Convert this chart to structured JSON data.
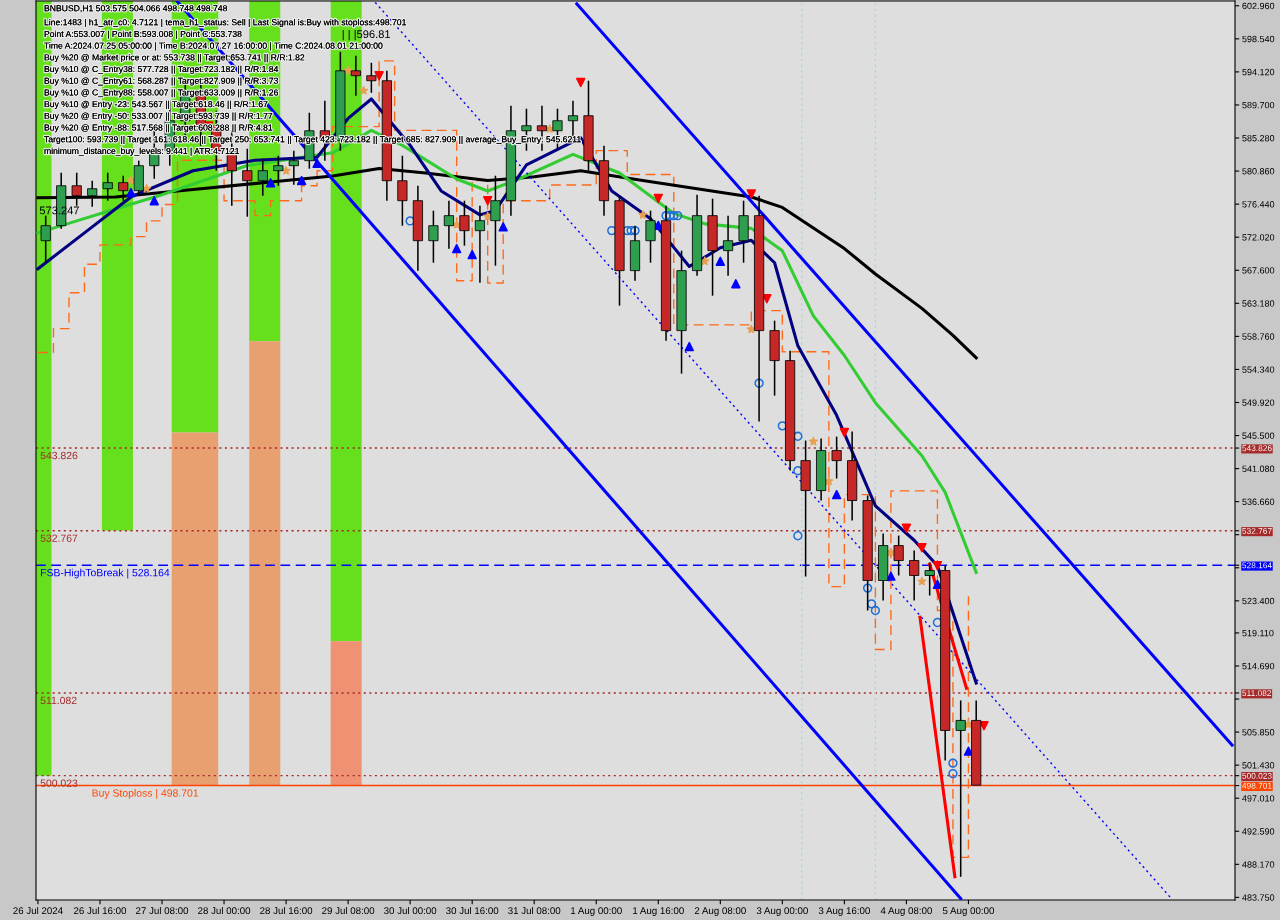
{
  "chart_data": {
    "type": "candlestick",
    "title": "BNBUSD,H1 503.575 504.066 498.748 498.748",
    "x": [
      "2024-07-26T02:00",
      "2024-07-26T06:00",
      "2024-07-26T10:00",
      "2024-07-26T14:00",
      "2024-07-26T18:00",
      "2024-07-26T22:00",
      "2024-07-27T02:00",
      "2024-07-27T06:00",
      "2024-07-27T10:00",
      "2024-07-27T14:00",
      "2024-07-27T18:00",
      "2024-07-27T22:00",
      "2024-07-28T02:00",
      "2024-07-28T06:00",
      "2024-07-28T10:00",
      "2024-07-28T14:00",
      "2024-07-28T18:00",
      "2024-07-28T22:00",
      "2024-07-29T02:00",
      "2024-07-29T06:00",
      "2024-07-29T10:00",
      "2024-07-29T14:00",
      "2024-07-29T18:00",
      "2024-07-29T22:00",
      "2024-07-30T02:00",
      "2024-07-30T06:00",
      "2024-07-30T10:00",
      "2024-07-30T14:00",
      "2024-07-30T18:00",
      "2024-07-30T22:00",
      "2024-07-31T02:00",
      "2024-07-31T06:00",
      "2024-07-31T10:00",
      "2024-07-31T14:00",
      "2024-07-31T18:00",
      "2024-07-31T22:00",
      "2024-08-01T02:00",
      "2024-08-01T06:00",
      "2024-08-01T10:00",
      "2024-08-01T14:00",
      "2024-08-01T18:00",
      "2024-08-01T22:00",
      "2024-08-02T02:00",
      "2024-08-02T06:00",
      "2024-08-02T10:00",
      "2024-08-02T14:00",
      "2024-08-02T18:00",
      "2024-08-02T22:00",
      "2024-08-03T02:00",
      "2024-08-03T06:00",
      "2024-08-03T10:00",
      "2024-08-03T14:00",
      "2024-08-03T18:00",
      "2024-08-03T22:00",
      "2024-08-04T02:00",
      "2024-08-04T06:00",
      "2024-08-04T10:00",
      "2024-08-04T14:00",
      "2024-08-04T18:00",
      "2024-08-04T22:00",
      "2024-08-05T02:00"
    ],
    "ohlc": [
      [
        571.55,
        574.9,
        568.61,
        573.56
      ],
      [
        573.56,
        580.64,
        573.16,
        578.9
      ],
      [
        578.9,
        580.64,
        576.23,
        577.57
      ],
      [
        577.57,
        579.57,
        576.1,
        578.5
      ],
      [
        578.5,
        580.64,
        576.9,
        579.31
      ],
      [
        579.31,
        580.24,
        576.9,
        578.24
      ],
      [
        578.24,
        582.25,
        577.57,
        581.58
      ],
      [
        581.58,
        586.25,
        579.84,
        583.58
      ],
      [
        583.58,
        590.26,
        581.58,
        587.59
      ],
      [
        587.59,
        593.2,
        584.92,
        590.93
      ],
      [
        590.93,
        593.2,
        584.25,
        586.92
      ],
      [
        586.92,
        588.93,
        580.91,
        583.58
      ],
      [
        583.58,
        586.25,
        576.23,
        580.91
      ],
      [
        580.91,
        583.85,
        574.76,
        579.57
      ],
      [
        579.57,
        582.51,
        577.57,
        580.91
      ],
      [
        580.91,
        582.91,
        578.9,
        581.58
      ],
      [
        581.58,
        583.58,
        579.04,
        582.25
      ],
      [
        582.25,
        588.66,
        581.18,
        586.25
      ],
      [
        586.25,
        590.26,
        582.25,
        584.92
      ],
      [
        584.92,
        596.81,
        583.58,
        594.27
      ],
      [
        594.27,
        596.28,
        590.93,
        593.61
      ],
      [
        593.61,
        595.34,
        591.33,
        592.94
      ],
      [
        592.94,
        594.27,
        576.9,
        579.57
      ],
      [
        579.57,
        582.91,
        573.56,
        576.9
      ],
      [
        576.9,
        578.9,
        567.55,
        571.55
      ],
      [
        571.55,
        575.56,
        568.61,
        573.56
      ],
      [
        573.56,
        576.9,
        570.49,
        574.9
      ],
      [
        574.9,
        576.9,
        570.89,
        572.89
      ],
      [
        572.89,
        576.23,
        565.94,
        574.23
      ],
      [
        574.23,
        580.24,
        568.21,
        576.9
      ],
      [
        576.9,
        589.6,
        574.9,
        586.25
      ],
      [
        586.25,
        589.2,
        583.58,
        586.92
      ],
      [
        586.92,
        589.6,
        583.58,
        586.25
      ],
      [
        586.25,
        589.2,
        583.85,
        587.59
      ],
      [
        587.59,
        590.26,
        584.92,
        588.26
      ],
      [
        588.26,
        592.94,
        580.91,
        582.25
      ],
      [
        582.25,
        584.25,
        574.9,
        576.9
      ],
      [
        576.9,
        577.57,
        562.87,
        567.55
      ],
      [
        567.55,
        573.56,
        566.21,
        571.55
      ],
      [
        571.55,
        575.56,
        568.61,
        574.23
      ],
      [
        574.23,
        576.23,
        558.19,
        559.53
      ],
      [
        559.53,
        570.22,
        553.78,
        567.55
      ],
      [
        567.55,
        577.7,
        566.88,
        574.9
      ],
      [
        574.9,
        577.17,
        564.2,
        570.22
      ],
      [
        570.22,
        574.9,
        566.88,
        571.55
      ],
      [
        571.55,
        576.9,
        568.61,
        574.9
      ],
      [
        574.9,
        577.57,
        547.37,
        559.53
      ],
      [
        559.53,
        560.86,
        550.84,
        555.52
      ],
      [
        555.52,
        556.85,
        540.82,
        542.15
      ],
      [
        542.15,
        544.83,
        526.65,
        538.14
      ],
      [
        538.14,
        545.09,
        536.81,
        543.49
      ],
      [
        543.49,
        545.36,
        539.75,
        542.15
      ],
      [
        542.15,
        546.03,
        534.14,
        536.81
      ],
      [
        536.81,
        537.48,
        522.11,
        526.12
      ],
      [
        526.12,
        532.4,
        523.44,
        530.79
      ],
      [
        530.79,
        532.13,
        526.79,
        528.79
      ],
      [
        528.79,
        530.13,
        523.44,
        526.79
      ],
      [
        526.79,
        528.52,
        524.11,
        527.45
      ],
      [
        527.45,
        528.12,
        502.06,
        506.07
      ],
      [
        506.07,
        510.08,
        486.5,
        507.41
      ],
      [
        507.41,
        510.08,
        498.748,
        498.748
      ]
    ],
    "colors": [
      "#2e9e4f",
      "#2e9e4f",
      "#c62828",
      "#2e9e4f",
      "#2e9e4f",
      "#c62828",
      "#2e9e4f",
      "#2e9e4f",
      "#2e9e4f",
      "#2e9e4f",
      "#c62828",
      "#c62828",
      "#c62828",
      "#c62828",
      "#2e9e4f",
      "#2e9e4f",
      "#2e9e4f",
      "#2e9e4f",
      "#c62828",
      "#2e9e4f",
      "#c62828",
      "#c62828",
      "#c62828",
      "#c62828",
      "#c62828",
      "#2e9e4f",
      "#2e9e4f",
      "#c62828",
      "#2e9e4f",
      "#2e9e4f",
      "#2e9e4f",
      "#2e9e4f",
      "#c62828",
      "#2e9e4f",
      "#2e9e4f",
      "#c62828",
      "#c62828",
      "#c62828",
      "#2e9e4f",
      "#2e9e4f",
      "#c62828",
      "#2e9e4f",
      "#2e9e4f",
      "#c62828",
      "#2e9e4f",
      "#2e9e4f",
      "#c62828",
      "#c62828",
      "#c62828",
      "#c62828",
      "#2e9e4f",
      "#c62828",
      "#c62828",
      "#c62828",
      "#2e9e4f",
      "#c62828",
      "#c62828",
      "#2e9e4f",
      "#c62828",
      "#2e9e4f",
      "#c62828"
    ],
    "series": [
      {
        "type": "histogram",
        "color": "#66e01c",
        "bins": [
          "2024-07-25T23:30",
          "2024-07-26T03:30",
          "2024-07-26T16:30",
          "2024-07-27T00:30",
          "2024-07-27T10:30",
          "2024-07-27T22:30",
          "2024-07-28T06:30",
          "2024-07-28T14:30",
          "2024-07-29T03:30",
          "2024-07-29T11:30"
        ],
        "base": [
          500.0,
          null,
          532.8,
          null,
          545.9,
          null,
          558.1,
          null,
          518.0
        ],
        "values": [
          103.6,
          null,
          70.8,
          null,
          57.7,
          null,
          45.5,
          null,
          85.6
        ]
      },
      {
        "type": "histogram",
        "color": "#e8a070",
        "bins": [
          "2024-07-27T10:30",
          "2024-07-27T22:30",
          "2024-07-28T06:30",
          "2024-07-28T14:30"
        ],
        "base": [
          498.7,
          null,
          498.7
        ],
        "values": [
          47.2,
          null,
          59.4
        ]
      },
      {
        "type": "histogram",
        "color": "#ef9274",
        "bins": [
          "2024-07-29T03:30",
          "2024-07-29T11:30"
        ],
        "base": [
          498.7
        ],
        "values": [
          19.3
        ]
      },
      {
        "type": "step",
        "color": "#ff6a1a",
        "line_style": "dashed",
        "x": [
          "2024-07-26T00:00",
          "2024-07-26T04:00",
          "2024-07-26T08:00",
          "2024-07-26T12:00",
          "2024-07-26T16:00",
          "2024-07-27T00:00",
          "2024-07-27T04:00",
          "2024-07-27T08:00",
          "2024-07-27T12:00",
          "2024-07-28T00:00",
          "2024-07-28T08:00",
          "2024-07-28T12:00",
          "2024-07-28T20:00",
          "2024-07-29T00:00",
          "2024-07-29T04:00",
          "2024-07-29T16:00",
          "2024-07-29T20:00",
          "2024-07-30T12:00",
          "2024-07-30T16:00",
          "2024-07-30T20:00",
          "2024-07-31T00:00",
          "2024-07-31T12:00",
          "2024-08-01T00:00",
          "2024-08-01T08:00",
          "2024-08-01T20:00",
          "2024-08-02T16:00",
          "2024-08-03T00:00",
          "2024-08-03T12:00",
          "2024-08-03T16:00",
          "2024-08-04T00:00",
          "2024-08-04T04:00",
          "2024-08-04T16:00",
          "2024-08-04T20:00",
          "2024-08-05T00:00"
        ],
        "values": [
          556.6,
          559.8,
          564.6,
          568.4,
          571.0,
          572.1,
          574.2,
          576.4,
          582.3,
          576.9,
          574.9,
          576.9,
          578.9,
          580.9,
          586.8,
          595.6,
          586.3,
          566.2,
          579.6,
          565.9,
          576.9,
          579.0,
          583.6,
          580.4,
          560.3,
          562.2,
          556.7,
          525.3,
          537.6,
          516.9,
          538.1,
          522.1,
          489.1,
          524.0
        ]
      },
      {
        "type": "line",
        "color": "#000000",
        "line_style": "solid",
        "x": [
          "2024-07-26T00:00",
          "2024-07-26T20:00",
          "2024-07-27T16:00",
          "2024-07-28T12:00",
          "2024-07-29T04:00",
          "2024-07-29T16:00",
          "2024-07-30T04:00",
          "2024-07-30T20:00",
          "2024-07-31T08:00",
          "2024-07-31T20:00",
          "2024-08-01T12:00",
          "2024-08-02T02:00",
          "2024-08-02T16:00",
          "2024-08-03T00:00",
          "2024-08-03T16:00",
          "2024-08-04T00:00",
          "2024-08-04T12:00",
          "2024-08-04T20:00",
          "2024-08-05T02:00"
        ],
        "values": [
          577.3,
          577.4,
          578.4,
          579.4,
          580.2,
          581.2,
          580.6,
          579.6,
          580.1,
          580.9,
          579.6,
          578.5,
          577.4,
          576.0,
          570.5,
          567.1,
          562.5,
          558.9,
          555.9
        ]
      },
      {
        "type": "line",
        "color": "#33cc33",
        "line_style": "solid",
        "x": [
          "2024-07-26T00:00",
          "2024-07-26T10:00",
          "2024-07-26T20:00",
          "2024-07-27T08:00",
          "2024-07-28T06:00",
          "2024-07-29T04:00",
          "2024-07-29T14:00",
          "2024-07-29T22:00",
          "2024-07-30T12:00",
          "2024-07-30T20:00",
          "2024-07-31T04:00",
          "2024-07-31T18:00",
          "2024-08-01T06:00",
          "2024-08-01T20:00",
          "2024-08-02T04:00",
          "2024-08-02T16:00",
          "2024-08-03T00:00",
          "2024-08-03T08:00",
          "2024-08-03T16:00",
          "2024-08-04T00:00",
          "2024-08-04T12:00",
          "2024-08-04T18:00",
          "2024-08-05T02:00"
        ],
        "values": [
          572.6,
          574.2,
          575.8,
          577.7,
          581.6,
          583.3,
          586.3,
          584.3,
          579.8,
          578.2,
          579.8,
          583.1,
          580.6,
          575.2,
          573.8,
          573.2,
          570.2,
          561.5,
          556.2,
          549.9,
          542.8,
          537.9,
          527.2
        ]
      },
      {
        "type": "line",
        "color": "#000080",
        "line_style": "solid",
        "x": [
          "2024-07-26T00:00",
          "2024-07-26T12:00",
          "2024-07-27T00:00",
          "2024-07-27T16:00",
          "2024-07-28T08:00",
          "2024-07-29T00:00",
          "2024-07-29T08:00",
          "2024-07-29T14:00",
          "2024-07-30T00:00",
          "2024-07-30T08:00",
          "2024-07-30T18:00",
          "2024-07-30T22:00",
          "2024-07-31T06:00",
          "2024-07-31T20:00",
          "2024-08-01T04:00",
          "2024-08-01T14:00",
          "2024-08-02T00:00",
          "2024-08-02T08:00",
          "2024-08-02T16:00",
          "2024-08-02T22:00",
          "2024-08-03T04:00",
          "2024-08-03T14:00",
          "2024-08-04T00:00",
          "2024-08-04T10:00",
          "2024-08-04T16:00",
          "2024-08-05T02:00"
        ],
        "values": [
          567.8,
          572.6,
          577.4,
          580.9,
          582.3,
          582.7,
          587.9,
          590.5,
          584.3,
          578.2,
          575.0,
          575.6,
          581.7,
          585.3,
          578.2,
          574.5,
          568.1,
          570.6,
          571.6,
          568.6,
          557.5,
          548.2,
          536.1,
          531.5,
          528.1,
          512.4
        ]
      },
      {
        "type": "line",
        "color": "#0000ff",
        "line_style": "solid",
        "x": [
          "2024-07-31T19:00",
          "2024-08-07T20:00"
        ],
        "values": [
          603.2,
          504.1
        ]
      },
      {
        "type": "line",
        "color": "#0000ff",
        "line_style": "solid",
        "x": [
          "2024-07-27T12:00",
          "2024-08-04T22:00"
        ],
        "values": [
          603.5,
          483.6
        ]
      },
      {
        "type": "line",
        "color": "#0000ff",
        "line_style": "dotted",
        "x": [
          "2024-07-29T15:00",
          "2024-08-07T04:00"
        ],
        "values": [
          603.4,
          483.8
        ]
      },
      {
        "type": "line",
        "color": "#ff0000",
        "line_style": "solid",
        "x": [
          "2024-08-04T11:30",
          "2024-08-04T20:30"
        ],
        "values": [
          521.2,
          486.5
        ]
      },
      {
        "type": "line",
        "color": "#ff0000",
        "line_style": "solid",
        "x": [
          "2024-08-04T14:00",
          "2024-08-04T23:30"
        ],
        "values": [
          528.3,
          511.7
        ]
      },
      {
        "type": "scatter",
        "color": "#ff0000",
        "marker": "triangle_down",
        "x": [
          "2024-07-27T20:00",
          "2024-07-29T16:00",
          "2024-07-30T20:00",
          "2024-07-31T20:00",
          "2024-08-01T16:00",
          "2024-08-02T16:00",
          "2024-08-02T20:00",
          "2024-08-03T16:00",
          "2024-08-04T08:00",
          "2024-08-04T12:00",
          "2024-08-04T16:00",
          "2024-08-05T04:00"
        ],
        "values": [
          586.9,
          593.6,
          576.9,
          592.7,
          577.2,
          577.8,
          563.8,
          545.9,
          533.1,
          530.5,
          528.1,
          506.7
        ]
      },
      {
        "type": "scatter",
        "color": "#0000ff",
        "marker": "triangle",
        "x": [
          "2024-07-27T00:00",
          "2024-07-27T06:00",
          "2024-07-28T12:00",
          "2024-07-28T20:00",
          "2024-07-29T00:00",
          "2024-07-30T12:00",
          "2024-07-30T16:00",
          "2024-07-31T00:00",
          "2024-08-01T16:00",
          "2024-08-02T00:00",
          "2024-08-02T08:00",
          "2024-08-02T12:00",
          "2024-08-03T14:00",
          "2024-08-04T04:00",
          "2024-08-04T16:00",
          "2024-08-05T00:00"
        ],
        "values": [
          578.0,
          576.9,
          579.3,
          579.6,
          581.9,
          570.5,
          569.7,
          573.4,
          573.6,
          557.4,
          568.8,
          565.8,
          537.6,
          526.7,
          525.6,
          503.3
        ]
      },
      {
        "type": "scatter",
        "color": "#1e6fd9",
        "marker": "circle",
        "x": [
          "2024-07-30T00:00",
          "2024-08-01T04:00",
          "2024-08-01T08:00",
          "2024-08-01T09:00",
          "2024-08-01T10:00",
          "2024-08-01T18:00",
          "2024-08-01T19:00",
          "2024-08-01T20:00",
          "2024-08-01T21:00",
          "2024-08-02T18:00",
          "2024-08-03T00:00",
          "2024-08-03T04:00",
          "2024-08-03T04:00",
          "2024-08-03T04:00",
          "2024-08-03T22:00",
          "2024-08-03T23:00",
          "2024-08-04T00:00",
          "2024-08-04T16:00",
          "2024-08-04T20:00",
          "2024-08-04T20:00"
        ],
        "values": [
          574.2,
          572.9,
          572.9,
          572.9,
          572.9,
          574.9,
          574.9,
          574.9,
          574.9,
          552.5,
          546.8,
          545.4,
          540.8,
          532.1,
          525.1,
          523.0,
          522.1,
          520.5,
          501.7,
          500.3
        ]
      },
      {
        "type": "scatter",
        "color": "#e8a050",
        "marker": "star",
        "x": [
          "2024-07-27T00:00",
          "2024-07-27T04:00",
          "2024-07-28T16:00",
          "2024-07-29T08:00",
          "2024-07-29T12:00",
          "2024-07-30T12:00",
          "2024-07-30T20:00",
          "2024-07-31T12:00",
          "2024-08-01T12:00",
          "2024-08-02T04:00",
          "2024-08-02T16:00",
          "2024-08-03T08:00",
          "2024-08-03T12:00",
          "2024-08-04T04:00",
          "2024-08-04T12:00",
          "2024-08-05T00:00"
        ],
        "values": [
          579.6,
          578.5,
          580.9,
          594.3,
          591.6,
          573.7,
          574.8,
          586.5,
          575.0,
          568.8,
          559.7,
          544.7,
          539.4,
          529.9,
          526.0,
          506.9
        ]
      }
    ],
    "ref_lines": [
      {
        "axis": "y",
        "value": 543.826,
        "label": "543.826",
        "color": "#a52a2a",
        "line_style": "dotted"
      },
      {
        "axis": "y",
        "value": 532.767,
        "label": "532.767",
        "color": "#a52a2a",
        "line_style": "dotted"
      },
      {
        "axis": "y",
        "value": 528.164,
        "label": "FSB-HighToBreak | 528.164",
        "color": "#0000ff",
        "line_style": "dashed"
      },
      {
        "axis": "y",
        "value": 511.082,
        "label": "511.082",
        "color": "#a52a2a",
        "line_style": "dotted"
      },
      {
        "axis": "y",
        "value": 500.023,
        "label": "500.023",
        "color": "#a52a2a",
        "line_style": "dotted"
      },
      {
        "axis": "y",
        "value": 498.701,
        "label": "Buy Stoploss | 498.701",
        "color": "#ff4500",
        "line_style": "solid"
      },
      {
        "axis": "x",
        "value": "2024-08-03T05:00",
        "color": "#9fd8e6",
        "line_style": "dotted"
      },
      {
        "axis": "x",
        "value": "2024-08-04T00:00",
        "color": "#9fd8e6",
        "line_style": "dotted"
      }
    ],
    "annotations": [
      "Line:1483 | h1_atr_c0: 4.7121 | tema_h1_status: Sell | Last Signal is:Buy with stoploss:498.701",
      "Point A:553.007 | Point B:593.008 | Point C:553.738",
      "Time A:2024.07.25 05:00:00 | Time B:2024.07.27 16:00:00 | Time C:2024.08.01 21:00:00",
      "Buy %20 @ Market price or at: 553.738 || Target:653.741 || R/R:1.82",
      "Buy %10 @ C_Entry38: 577.728 || Target:723.182 || R/R:1.84",
      "Buy %10 @ C_Entry61: 568.287 || Target:827.909 || R/R:3.73",
      "Buy %10 @ C_Entry88: 558.007 || Target:633.009 || R/R:1.26",
      "Buy %10 @ Entry -23: 543.567 || Target:618.46 || R/R:1.67",
      "Buy %20 @ Entry -50: 533.007 || Target:593.739 || R/R:1.77",
      "Buy %20 @ Entry -88: 517.568 || Target:608.288 || R/R:4.81",
      "Target100: 593.739 || Target 161: 618.46 || Target 250: 653.741 || Target 423: 723.182 || Target 685: 827.909 || average_Buy_Entry: 545.6211",
      "minimum_distance_buy_levels: 9.441 | ATR:4.7121",
      {
        "text": "| | |596.81",
        "x": "2024-07-29T06:00",
        "y": 596.81
      },
      {
        "text": "573.247",
        "x": "2024-07-26T00:00",
        "y": 573.247
      }
    ],
    "xlim": [
      "2024-07-25T23:30",
      "2024-08-07T20:45"
    ],
    "ylim": [
      483.4,
      603.6
    ],
    "xticks": [
      {
        "value": "2024-07-26T00:00",
        "label": "26 Jul 2024"
      },
      {
        "value": "2024-07-26T16:00",
        "label": "26 Jul 16:00"
      },
      {
        "value": "2024-07-27T08:00",
        "label": "27 Jul 08:00"
      },
      {
        "value": "2024-07-28T00:00",
        "label": "28 Jul 00:00"
      },
      {
        "value": "2024-07-28T16:00",
        "label": "28 Jul 16:00"
      },
      {
        "value": "2024-07-29T08:00",
        "label": "29 Jul 08:00"
      },
      {
        "value": "2024-07-30T00:00",
        "label": "30 Jul 00:00"
      },
      {
        "value": "2024-07-30T16:00",
        "label": "30 Jul 16:00"
      },
      {
        "value": "2024-07-31T08:00",
        "label": "31 Jul 08:00"
      },
      {
        "value": "2024-08-01T00:00",
        "label": "1 Aug 00:00"
      },
      {
        "value": "2024-08-01T16:00",
        "label": "1 Aug 16:00"
      },
      {
        "value": "2024-08-02T08:00",
        "label": "2 Aug 08:00"
      },
      {
        "value": "2024-08-03T00:00",
        "label": "3 Aug 00:00"
      },
      {
        "value": "2024-08-03T16:00",
        "label": "3 Aug 16:00"
      },
      {
        "value": "2024-08-04T08:00",
        "label": "4 Aug 08:00"
      },
      {
        "value": "2024-08-05T00:00",
        "label": "5 Aug 00:00"
      }
    ],
    "yticks": [
      {
        "value": 602.96,
        "label": "602.960"
      },
      {
        "value": 598.54,
        "label": "598.540"
      },
      {
        "value": 594.12,
        "label": "594.120"
      },
      {
        "value": 589.7,
        "label": "589.700"
      },
      {
        "value": 585.28,
        "label": "585.280"
      },
      {
        "value": 580.86,
        "label": "580.860"
      },
      {
        "value": 576.44,
        "label": "576.440"
      },
      {
        "value": 572.02,
        "label": "572.020"
      },
      {
        "value": 567.6,
        "label": "567.600"
      },
      {
        "value": 563.18,
        "label": "563.180"
      },
      {
        "value": 558.76,
        "label": "558.760"
      },
      {
        "value": 554.34,
        "label": "554.340"
      },
      {
        "value": 549.92,
        "label": "549.920"
      },
      {
        "value": 545.5,
        "label": "545.500"
      },
      {
        "value": 543.826,
        "label": "543.826"
      },
      {
        "value": 541.08,
        "label": "541.080"
      },
      {
        "value": 536.66,
        "label": "536.660"
      },
      {
        "value": 532.767,
        "label": "532.767"
      },
      {
        "value": 532.24,
        "label": null
      },
      {
        "value": 528.164,
        "label": "528.164"
      },
      {
        "value": 527.82,
        "label": null
      },
      {
        "value": 523.4,
        "label": "523.400"
      },
      {
        "value": 519.11,
        "label": "519.110"
      },
      {
        "value": 514.69,
        "label": "514.690"
      },
      {
        "value": 511.082,
        "label": "511.082"
      },
      {
        "value": 510.27,
        "label": null
      },
      {
        "value": 505.85,
        "label": "505.850"
      },
      {
        "value": 501.43,
        "label": "501.430"
      },
      {
        "value": 500.023,
        "label": "500.023"
      },
      {
        "value": 498.701,
        "label": "498.701"
      },
      {
        "value": 497.01,
        "label": "497.010"
      },
      {
        "value": 492.59,
        "label": "492.590"
      },
      {
        "value": 488.17,
        "label": "488.170"
      },
      {
        "value": 483.75,
        "label": "483.750"
      }
    ]
  }
}
